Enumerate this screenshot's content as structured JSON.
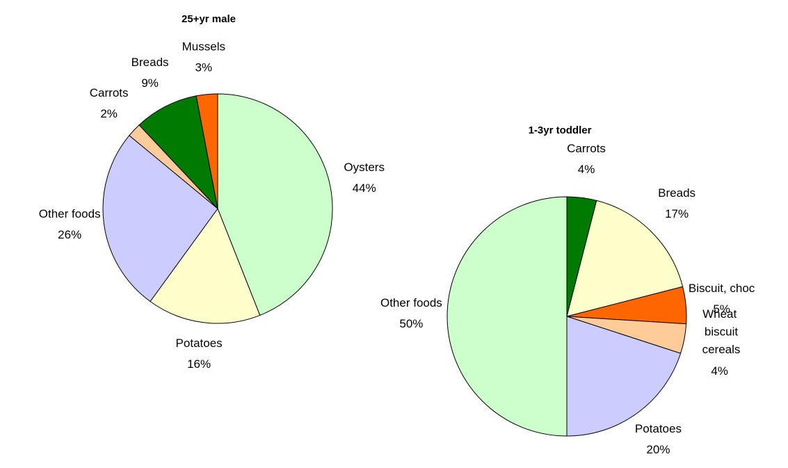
{
  "chart_data": [
    {
      "type": "pie",
      "title": "25+yr male",
      "categories": [
        "Oysters",
        "Potatoes",
        "Other foods",
        "Carrots",
        "Breads",
        "Mussels"
      ],
      "values": [
        44,
        16,
        26,
        2,
        9,
        3
      ],
      "value_labels": [
        "44%",
        "16%",
        "26%",
        "2%",
        "9%",
        "3%"
      ],
      "colors": [
        "#ccffcc",
        "#ffffcc",
        "#ccccff",
        "#ffcc99",
        "#007a00",
        "#ff6600"
      ]
    },
    {
      "type": "pie",
      "title": "1-3yr toddler",
      "categories": [
        "Carrots",
        "Breads",
        "Biscuit, choc",
        "Wheat biscuit cereals",
        "Potatoes",
        "Other foods"
      ],
      "values": [
        4,
        17,
        5,
        4,
        20,
        50
      ],
      "value_labels": [
        "4%",
        "17%",
        "5%",
        "4%",
        "20%",
        "50%"
      ],
      "colors": [
        "#007a00",
        "#ffffcc",
        "#ff6600",
        "#ffcc99",
        "#ccccff",
        "#ccffcc"
      ]
    }
  ]
}
